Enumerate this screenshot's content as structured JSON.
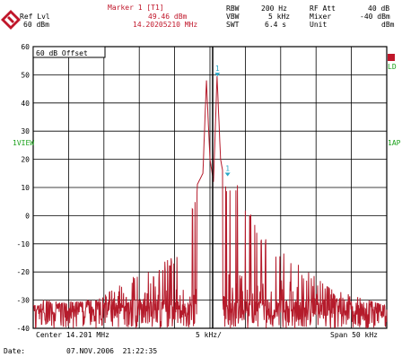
{
  "header": {
    "ref_lvl_label": "Ref Lvl",
    "ref_lvl_value": "60 dBm",
    "marker_title": "Marker 1 [T1]",
    "marker_level": "49.46 dBm",
    "marker_freq": "14.20205210 MHz",
    "rbw_label": "RBW",
    "rbw_value": "200 Hz",
    "vbw_label": "VBW",
    "vbw_value": "5 kHz",
    "swt_label": "SWT",
    "swt_value": "6.4 s",
    "rfatt_label": "RF Att",
    "rfatt_value": "40 dB",
    "mixer_label": "Mixer",
    "mixer_value": "-40 dBm",
    "unit_label": "Unit",
    "unit_value": "dBm"
  },
  "plot": {
    "offset_label": "60 dB Offset",
    "left_tag": "1VIEW",
    "right_tag_top": "LD",
    "right_tag_mid": "1AP",
    "marker1_label": "1",
    "marker2_label": "1"
  },
  "footer": {
    "center": "Center 14.201 MHz",
    "div": "5 kHz/",
    "span": "Span 50 kHz",
    "date_label": "Date:",
    "date_value": "07.NOV.2006  21:22:35"
  },
  "colors": {
    "trace": "#b51b2b",
    "marker": "#2aa7c7",
    "grid": "#000000",
    "accent": "#c0162a",
    "status_green": "#1aa11a"
  },
  "chart_data": {
    "type": "line",
    "xlabel": "",
    "ylabel": "",
    "xlim": [
      14.176,
      14.226
    ],
    "ylim": [
      -40,
      60
    ],
    "grid": true,
    "y_ticks": [
      60,
      50,
      40,
      30,
      20,
      10,
      0,
      -10,
      -20,
      -30,
      -40
    ],
    "series": [
      {
        "values_note_removed": true,
        "x": [
          14.176,
          14.185,
          14.19,
          14.193,
          14.195,
          14.197,
          14.199,
          14.2,
          14.2005,
          14.201,
          14.2015,
          14.202,
          14.2025,
          14.203,
          14.204,
          14.205,
          14.206,
          14.208,
          14.21,
          14.214,
          14.218,
          14.226
        ],
        "y": [
          -32,
          -30,
          -22,
          -18,
          -15,
          -12,
          10,
          15,
          48,
          20,
          12,
          49.5,
          20,
          13,
          10,
          14,
          5,
          -5,
          -10,
          -18,
          -26,
          -32
        ]
      }
    ],
    "markers": [
      {
        "label": "1",
        "x": 14.20205,
        "y": 49.46
      },
      {
        "label": "1",
        "x": 14.2035,
        "y": 14
      }
    ]
  }
}
